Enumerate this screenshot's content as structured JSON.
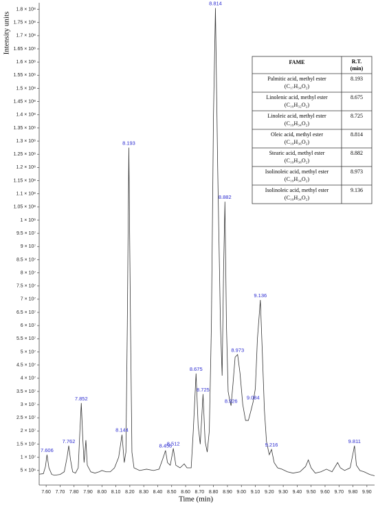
{
  "chart_data": {
    "type": "line",
    "xlabel": "Time (min)",
    "ylabel": "Intensity units",
    "color": "#333333",
    "annotation_color": "#2a2ad0",
    "xlim": [
      7.55,
      9.955
    ],
    "ylim": [
      0,
      182500000.0
    ],
    "xticks": [
      {
        "value": 7.6,
        "label": "7.60"
      },
      {
        "value": 7.7,
        "label": "7.70"
      },
      {
        "value": 7.8,
        "label": "7.80"
      },
      {
        "value": 7.9,
        "label": "7.90"
      },
      {
        "value": 8.0,
        "label": "8.00"
      },
      {
        "value": 8.1,
        "label": "8.10"
      },
      {
        "value": 8.2,
        "label": "8.20"
      },
      {
        "value": 8.3,
        "label": "8.30"
      },
      {
        "value": 8.4,
        "label": "8.40"
      },
      {
        "value": 8.5,
        "label": "8.50"
      },
      {
        "value": 8.6,
        "label": "8.60"
      },
      {
        "value": 8.7,
        "label": "8.70"
      },
      {
        "value": 8.8,
        "label": "8.80"
      },
      {
        "value": 8.9,
        "label": "8.90"
      },
      {
        "value": 9.0,
        "label": "9.00"
      },
      {
        "value": 9.1,
        "label": "9.10"
      },
      {
        "value": 9.2,
        "label": "9.20"
      },
      {
        "value": 9.3,
        "label": "9.30"
      },
      {
        "value": 9.4,
        "label": "9.40"
      },
      {
        "value": 9.5,
        "label": "9.50"
      },
      {
        "value": 9.6,
        "label": "9.60"
      },
      {
        "value": 9.7,
        "label": "9.70"
      },
      {
        "value": 9.8,
        "label": "9.80"
      },
      {
        "value": 9.9,
        "label": "9.90"
      }
    ],
    "yticks": [
      {
        "value": 5000000.0,
        "label": "5 × 10⁶"
      },
      {
        "value": 10000000.0,
        "label": "1 × 10⁷"
      },
      {
        "value": 15000000.0,
        "label": "1.5 × 10⁷"
      },
      {
        "value": 20000000.0,
        "label": "2 × 10⁷"
      },
      {
        "value": 25000000.0,
        "label": "2.5 × 10⁷"
      },
      {
        "value": 30000000.0,
        "label": "3 × 10⁷"
      },
      {
        "value": 35000000.0,
        "label": "3.5 × 10⁷"
      },
      {
        "value": 40000000.0,
        "label": "4 × 10⁷"
      },
      {
        "value": 45000000.0,
        "label": "4.5 × 10⁷"
      },
      {
        "value": 50000000.0,
        "label": "5 × 10⁷"
      },
      {
        "value": 55000000.0,
        "label": "5.5 × 10⁷"
      },
      {
        "value": 60000000.0,
        "label": "6 × 10⁷"
      },
      {
        "value": 65000000.0,
        "label": "6.5 × 10⁷"
      },
      {
        "value": 70000000.0,
        "label": "7 × 10⁷"
      },
      {
        "value": 75000000.0,
        "label": "7.5 × 10⁷"
      },
      {
        "value": 80000000.0,
        "label": "8 × 10⁷"
      },
      {
        "value": 85000000.0,
        "label": "8.5 × 10⁷"
      },
      {
        "value": 90000000.0,
        "label": "9 × 10⁷"
      },
      {
        "value": 95000000.0,
        "label": "9.5 × 10⁷"
      },
      {
        "value": 100000000.0,
        "label": "1 × 10⁸"
      },
      {
        "value": 105000000.0,
        "label": "1.05 × 10⁸"
      },
      {
        "value": 110000000.0,
        "label": "1.1 × 10⁸"
      },
      {
        "value": 115000000.0,
        "label": "1.15 × 10⁸"
      },
      {
        "value": 120000000.0,
        "label": "1.2 × 10⁸"
      },
      {
        "value": 125000000.0,
        "label": "1.25 × 10⁸"
      },
      {
        "value": 130000000.0,
        "label": "1.3 × 10⁸"
      },
      {
        "value": 135000000.0,
        "label": "1.35 × 10⁸"
      },
      {
        "value": 140000000.0,
        "label": "1.4 × 10⁸"
      },
      {
        "value": 145000000.0,
        "label": "1.45 × 10⁸"
      },
      {
        "value": 150000000.0,
        "label": "1.5 × 10⁸"
      },
      {
        "value": 155000000.0,
        "label": "1.55 × 10⁸"
      },
      {
        "value": 160000000.0,
        "label": "1.6 × 10⁸"
      },
      {
        "value": 165000000.0,
        "label": "1.65 × 10⁸"
      },
      {
        "value": 170000000.0,
        "label": "1.7 × 10⁸"
      },
      {
        "value": 175000000.0,
        "label": "1.75 × 10⁸"
      },
      {
        "value": 180000000.0,
        "label": "1.8 × 10⁸"
      }
    ],
    "x": [
      7.55,
      7.58,
      7.595,
      7.606,
      7.62,
      7.64,
      7.66,
      7.7,
      7.73,
      7.75,
      7.762,
      7.775,
      7.79,
      7.81,
      7.83,
      7.842,
      7.852,
      7.862,
      7.872,
      7.885,
      7.895,
      7.92,
      7.95,
      7.98,
      8.0,
      8.03,
      8.06,
      8.09,
      8.12,
      8.144,
      8.16,
      8.172,
      8.182,
      8.193,
      8.205,
      8.215,
      8.23,
      8.27,
      8.32,
      8.37,
      8.41,
      8.44,
      8.456,
      8.47,
      8.49,
      8.512,
      8.53,
      8.56,
      8.59,
      8.61,
      8.64,
      8.655,
      8.675,
      8.69,
      8.705,
      8.725,
      8.74,
      8.755,
      8.77,
      8.785,
      8.8,
      8.814,
      8.83,
      8.85,
      8.862,
      8.872,
      8.882,
      8.893,
      8.905,
      8.915,
      8.926,
      8.94,
      8.955,
      8.973,
      8.99,
      9.01,
      9.03,
      9.05,
      9.07,
      9.084,
      9.1,
      9.115,
      9.136,
      9.15,
      9.165,
      9.18,
      9.2,
      9.216,
      9.235,
      9.26,
      9.29,
      9.33,
      9.37,
      9.42,
      9.46,
      9.48,
      9.5,
      9.53,
      9.57,
      9.61,
      9.65,
      9.69,
      9.71,
      9.74,
      9.78,
      9.795,
      9.811,
      9.825,
      9.85,
      9.88,
      9.92,
      9.955
    ],
    "values": [
      3600000.0,
      3800000.0,
      6500000.0,
      11000000.0,
      6000000.0,
      3500000.0,
      3200000.0,
      3500000.0,
      4500000.0,
      10000000.0,
      14400000.0,
      9000000.0,
      4500000.0,
      4000000.0,
      6000000.0,
      20000000.0,
      30600000.0,
      18000000.0,
      8000000.0,
      16500000.0,
      7000000.0,
      4500000.0,
      4000000.0,
      4500000.0,
      5000000.0,
      4500000.0,
      4500000.0,
      6000000.0,
      10000000.0,
      18600000.0,
      8000000.0,
      12000000.0,
      60000000.0,
      127500000.0,
      60000000.0,
      12000000.0,
      6000000.0,
      5000000.0,
      5500000.0,
      5000000.0,
      5500000.0,
      10000000.0,
      12600000.0,
      8000000.0,
      7000000.0,
      13400000.0,
      7000000.0,
      6000000.0,
      7500000.0,
      6000000.0,
      6000000.0,
      20000000.0,
      41800000.0,
      22000000.0,
      15000000.0,
      34000000.0,
      16000000.0,
      12000000.0,
      20000000.0,
      60000000.0,
      140000000.0,
      180500000.0,
      120000000.0,
      60000000.0,
      41000000.0,
      80000000.0,
      107000000.0,
      60000000.0,
      35000000.0,
      32000000.0,
      29600000.0,
      38000000.0,
      48000000.0,
      49000000.0,
      42000000.0,
      30000000.0,
      24000000.0,
      24000000.0,
      28000000.0,
      31000000.0,
      36000000.0,
      55000000.0,
      69700000.0,
      50000000.0,
      28000000.0,
      16000000.0,
      11000000.0,
      13000000.0,
      8000000.0,
      6000000.0,
      5500000.0,
      4500000.0,
      4000000.0,
      4500000.0,
      6500000.0,
      9000000.0,
      6000000.0,
      4000000.0,
      4500000.0,
      5500000.0,
      4500000.0,
      8000000.0,
      6000000.0,
      5000000.0,
      6000000.0,
      10000000.0,
      14400000.0,
      7000000.0,
      5000000.0,
      4500000.0,
      3500000.0,
      3000000.0
    ],
    "annotations": [
      {
        "x": 7.606,
        "y": 11000000.0
      },
      {
        "x": 7.762,
        "y": 14400000.0
      },
      {
        "x": 7.852,
        "y": 30600000.0
      },
      {
        "x": 8.144,
        "y": 18600000.0
      },
      {
        "x": 8.193,
        "y": 127500000.0
      },
      {
        "x": 8.456,
        "y": 12600000.0
      },
      {
        "x": 8.512,
        "y": 13400000.0
      },
      {
        "x": 8.675,
        "y": 41800000.0
      },
      {
        "x": 8.725,
        "y": 34000000.0
      },
      {
        "x": 8.814,
        "y": 180500000.0
      },
      {
        "x": 8.882,
        "y": 107000000.0
      },
      {
        "x": 8.926,
        "y": 29600000.0
      },
      {
        "x": 8.973,
        "y": 49000000.0
      },
      {
        "x": 9.084,
        "y": 31000000.0
      },
      {
        "x": 9.136,
        "y": 69700000.0
      },
      {
        "x": 9.216,
        "y": 13000000.0
      },
      {
        "x": 9.811,
        "y": 14400000.0
      }
    ],
    "table": {
      "header": {
        "name": "FAME",
        "rt": [
          "R.T.",
          "(min)"
        ]
      },
      "rows": [
        [
          "Palmitic acid, methyl ester",
          "(C₁₇H₃₄O₂)",
          "8.193"
        ],
        [
          "Linolenic acid, methyl ester",
          "(C₁₉H₃₂O₂)",
          "8.675"
        ],
        [
          "Linoleic acid, methyl ester",
          "(C₁₉H₃₄O₂)",
          "8.725"
        ],
        [
          "Oleic acid, methyl ester",
          "(C₁₉H₃₆O₂)",
          "8.814"
        ],
        [
          "Stearic acid, methyl ester",
          "(C₁₉H₃₈O₂)",
          "8.882"
        ],
        [
          "Isolinoleic acid, methyl ester",
          "(C₁₉H₃₄O₂)",
          "8.973"
        ],
        [
          "Isolinoleic acid, methyl ester",
          "(C₁₉H₃₄O₂)",
          "9.136"
        ]
      ]
    }
  }
}
